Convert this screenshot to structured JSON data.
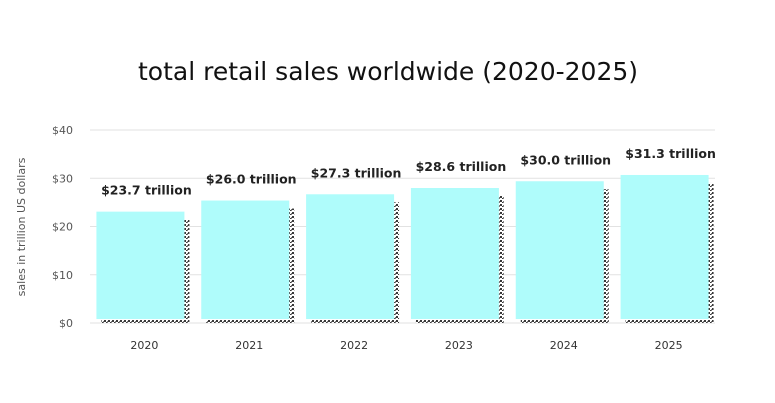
{
  "chart_data": {
    "type": "bar",
    "title": "total retail sales worldwide (2020-2025)",
    "xlabel": "",
    "ylabel": "sales in trillion US dollars",
    "categories": [
      "2020",
      "2021",
      "2022",
      "2023",
      "2024",
      "2025"
    ],
    "values": [
      23.7,
      26.0,
      27.3,
      28.6,
      30.0,
      31.3
    ],
    "data_labels": [
      "$23.7 trillion",
      "$26.0 trillion",
      "$27.3 trillion",
      "$28.6 trillion",
      "$30.0 trillion",
      "$31.3 trillion"
    ],
    "ylim": [
      0,
      40
    ],
    "yticks": [
      0,
      10,
      20,
      30,
      40
    ],
    "ytick_labels": [
      "$0",
      "$10",
      "$20",
      "$30",
      "$40"
    ],
    "grid": true,
    "legend": "none",
    "colors": {
      "bar": "#affcfb",
      "shadow": "#3a3a3a",
      "grid": "#e2e2e2"
    }
  }
}
